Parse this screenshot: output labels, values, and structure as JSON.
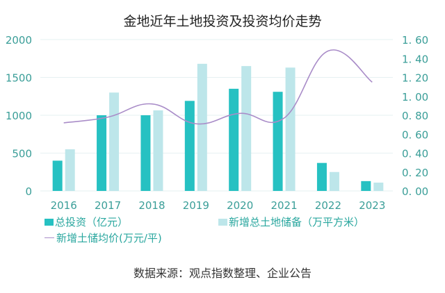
{
  "chart_data": {
    "type": "bar",
    "title": "金地近年土地投资及投资均价走势",
    "categories": [
      "2016",
      "2017",
      "2018",
      "2019",
      "2020",
      "2021",
      "2022",
      "2023"
    ],
    "y_left": {
      "ylim": [
        0,
        2000
      ],
      "ticks": [
        "0",
        "500",
        "1000",
        "1500",
        "2000"
      ],
      "tick_values": [
        0,
        500,
        1000,
        1500,
        2000
      ]
    },
    "y_right": {
      "ylim": [
        0,
        1.6
      ],
      "ticks": [
        "0. 00",
        "0. 20",
        "0. 40",
        "0. 60",
        "0. 80",
        "1. 00",
        "1. 20",
        "1. 40",
        "1. 60"
      ],
      "tick_values": [
        0,
        0.2,
        0.4,
        0.6,
        0.8,
        1.0,
        1.2,
        1.4,
        1.6
      ]
    },
    "series": [
      {
        "name": "总投资（亿元）",
        "type": "bar",
        "axis": "left",
        "color": "#26c1c2",
        "values": [
          400,
          1000,
          1000,
          1190,
          1350,
          1310,
          370,
          130
        ]
      },
      {
        "name": "新增总土地储备（万平方米）",
        "type": "bar",
        "axis": "left",
        "color": "#bde6ea",
        "values": [
          550,
          1300,
          1065,
          1680,
          1650,
          1630,
          250,
          110
        ]
      },
      {
        "name": "新增土储均价(万元/平)",
        "type": "line",
        "axis": "right",
        "color": "#a98cc8",
        "values": [
          0.72,
          0.78,
          0.92,
          0.71,
          0.82,
          0.77,
          1.48,
          1.15
        ]
      }
    ],
    "grid": true,
    "legend_position": "bottom"
  },
  "legend": {
    "total_investment": "总投资（亿元）",
    "new_land_reserve": "新增总土地储备（万平方米）",
    "avg_price": "新增土储均价(万元/平)"
  },
  "source": "数据来源：观点指数整理、企业公告"
}
